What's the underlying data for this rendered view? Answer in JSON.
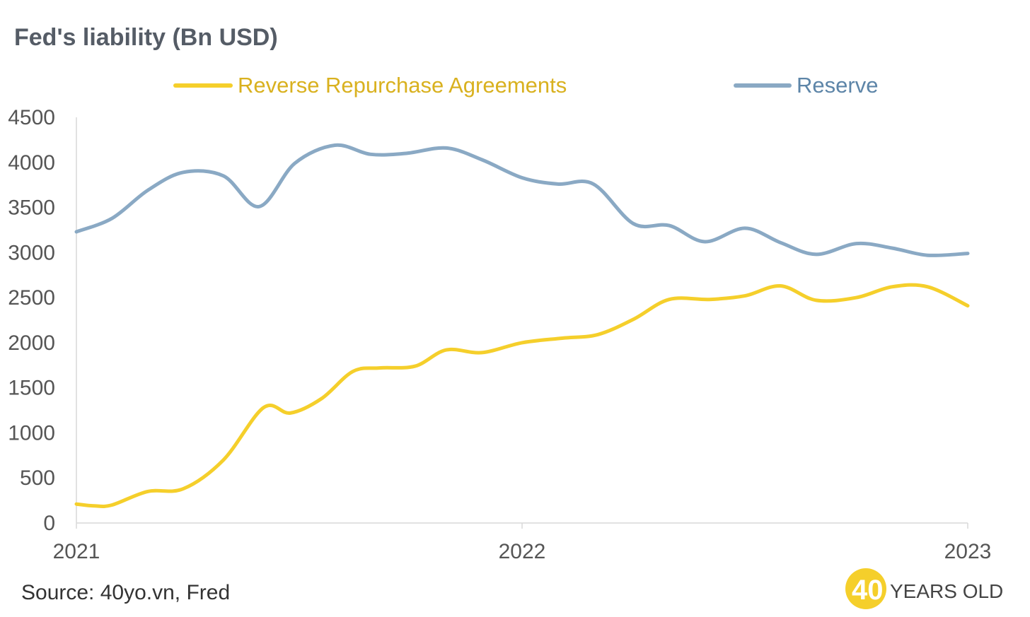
{
  "chart_data": {
    "type": "line",
    "title": "Fed's liability (Bn USD)",
    "xlabel": "",
    "ylabel": "",
    "ylim": [
      0,
      4500
    ],
    "yticks": [
      0,
      500,
      1000,
      1500,
      2000,
      2500,
      3000,
      3500,
      4000,
      4500
    ],
    "xlim": [
      2021,
      2023
    ],
    "xticks": [
      "2021",
      "2022",
      "2023"
    ],
    "grid": false,
    "legend": "top",
    "series": [
      {
        "name": "Reverse Repurchase Agreements",
        "color": "#f5cf2b",
        "x": [
          2021.0,
          2021.04,
          2021.08,
          2021.16,
          2021.24,
          2021.33,
          2021.42,
          2021.48,
          2021.55,
          2021.62,
          2021.68,
          2021.76,
          2021.83,
          2021.91,
          2022.0,
          2022.09,
          2022.17,
          2022.25,
          2022.33,
          2022.42,
          2022.5,
          2022.58,
          2022.66,
          2022.75,
          2022.83,
          2022.91,
          2023.0
        ],
        "values": [
          210,
          190,
          200,
          350,
          380,
          700,
          1280,
          1220,
          1380,
          1680,
          1720,
          1740,
          1920,
          1890,
          2000,
          2050,
          2090,
          2260,
          2480,
          2480,
          2520,
          2630,
          2470,
          2500,
          2620,
          2620,
          2410
        ]
      },
      {
        "name": "Reserve",
        "color": "#8aa9c4",
        "x": [
          2021.0,
          2021.08,
          2021.16,
          2021.24,
          2021.33,
          2021.41,
          2021.49,
          2021.58,
          2021.66,
          2021.74,
          2021.83,
          2021.91,
          2022.0,
          2022.08,
          2022.16,
          2022.25,
          2022.33,
          2022.41,
          2022.5,
          2022.58,
          2022.66,
          2022.75,
          2022.83,
          2022.91,
          2023.0
        ],
        "values": [
          3230,
          3380,
          3690,
          3890,
          3850,
          3510,
          3990,
          4190,
          4090,
          4100,
          4160,
          4030,
          3830,
          3760,
          3760,
          3320,
          3300,
          3120,
          3270,
          3110,
          2980,
          3100,
          3050,
          2970,
          2990
        ]
      }
    ]
  },
  "footer": {
    "source": "Source: 40yo.vn, Fred",
    "logo_number": "40",
    "logo_text": "YEARS OLD",
    "logo_color": "#f5cf2b"
  }
}
